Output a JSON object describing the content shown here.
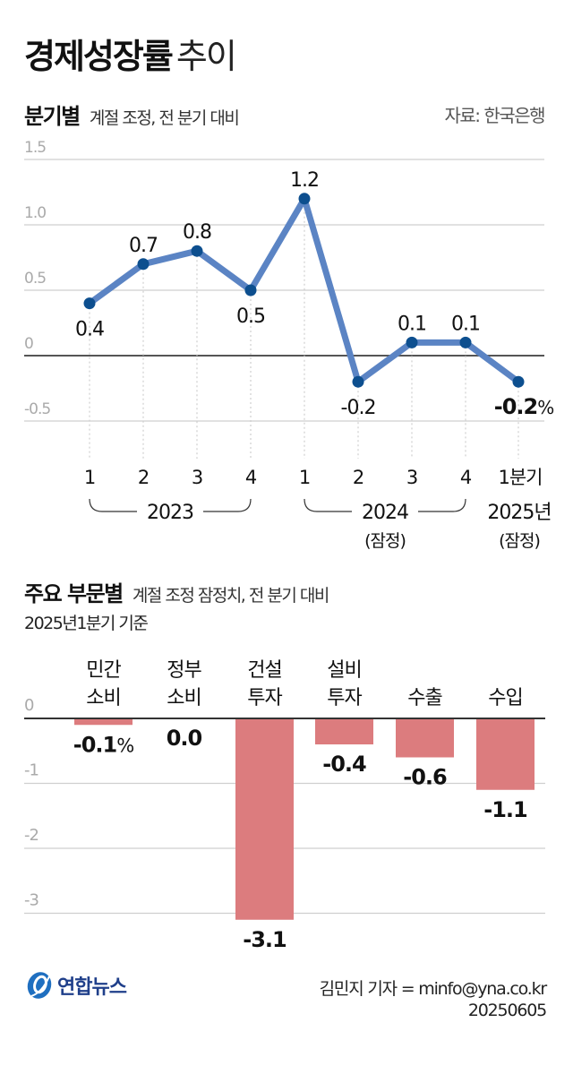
{
  "header": {
    "title_bold": "경제성장률",
    "title_light": "추이",
    "section1_title": "분기별",
    "section1_note": "계절 조정, 전 분기 대비",
    "source": "자료: 한국은행"
  },
  "section2": {
    "title": "주요 부문별",
    "note": "계절 조정 잠정치, 전 분기 대비",
    "basis": "2025년1분기 기준"
  },
  "footer": {
    "logo": "연합뉴스",
    "credit": "김민지 기자 = minfo@yna.co.kr",
    "date": "20250605"
  },
  "colors": {
    "line": "#5b84c4",
    "dot": "#0d4f8f",
    "bar": "#dc7c7e",
    "grid": "#cfcfcf",
    "axis": "#555555",
    "logo_blue": "#1f6fc0"
  },
  "chart_data": [
    {
      "type": "line",
      "title": "분기별",
      "subtitle": "계절 조정, 전 분기 대비",
      "xlabel": "",
      "ylabel": "",
      "unit": "%",
      "ylim": [
        -0.5,
        1.5
      ],
      "yticks": [
        "1.5",
        "1.0",
        "0.5",
        "0",
        "-0.5"
      ],
      "grid": true,
      "categories": [
        "2023 1",
        "2023 2",
        "2023 3",
        "2023 4",
        "2024 1",
        "2024 2",
        "2024 3",
        "2024 4",
        "2025 1분기"
      ],
      "x_tick_labels": [
        "1",
        "2",
        "3",
        "4",
        "1",
        "2",
        "3",
        "4",
        "1분기"
      ],
      "x_groups": [
        {
          "label": "2023",
          "sub": ""
        },
        {
          "label": "2024",
          "sub": "(잠정)"
        },
        {
          "label": "2025년",
          "sub": "(잠정)"
        }
      ],
      "values": [
        0.4,
        0.7,
        0.8,
        0.5,
        1.2,
        -0.2,
        0.1,
        0.1,
        -0.2
      ],
      "value_labels": [
        "0.4",
        "0.7",
        "0.8",
        "0.5",
        "1.2",
        "-0.2",
        "0.1",
        "0.1",
        "-0.2"
      ],
      "last_label_suffix": "%"
    },
    {
      "type": "bar",
      "title": "주요 부문별",
      "subtitle": "계절 조정 잠정치, 전 분기 대비 / 2025년1분기 기준",
      "xlabel": "",
      "ylabel": "",
      "unit": "%",
      "ylim": [
        -3.1,
        0
      ],
      "yticks": [
        "0",
        "-1",
        "-2",
        "-3"
      ],
      "grid": true,
      "categories": [
        "민간 소비",
        "정부 소비",
        "건설 투자",
        "설비 투자",
        "수출",
        "수입"
      ],
      "category_lines": [
        [
          "민간",
          "소비"
        ],
        [
          "정부",
          "소비"
        ],
        [
          "건설",
          "투자"
        ],
        [
          "설비",
          "투자"
        ],
        [
          "",
          "수출"
        ],
        [
          "",
          "수입"
        ]
      ],
      "values": [
        -0.1,
        0.0,
        -3.1,
        -0.4,
        -0.6,
        -1.1
      ],
      "value_labels": [
        "-0.1%",
        "0.0",
        "-3.1",
        "-0.4",
        "-0.6",
        "-1.1"
      ]
    }
  ]
}
